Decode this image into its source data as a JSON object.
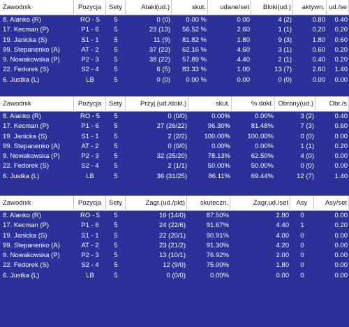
{
  "attack": {
    "headers": [
      "Zawodnik",
      "Pozycja",
      "Sety",
      "Ataki(ud.)",
      "skut.",
      "udane/set",
      "Bloki(ud.)",
      "aktywn.",
      "ud./se"
    ],
    "rows": [
      [
        "8. Alanko (R)",
        "RO - 5",
        "5",
        "0 (0)",
        "0.00 %",
        "0.00",
        "4 (2)",
        "0.80",
        "0.40"
      ],
      [
        "17. Kecman (P)",
        "P1 - 6",
        "5",
        "23 (13)",
        "56.52 %",
        "2.60",
        "1 (1)",
        "0.20",
        "0.20"
      ],
      [
        "19. Janicka (S)",
        "S1 - 1",
        "5",
        "11 (9)",
        "81.82 %",
        "1.80",
        "9 (3)",
        "1.80",
        "0.60"
      ],
      [
        "99. Stepanenko (A)",
        "AT - 2",
        "5",
        "37 (23)",
        "62.16 %",
        "4.60",
        "3 (1)",
        "0.60",
        "0.20"
      ],
      [
        "9. Nowakowska (P)",
        "P2 - 3",
        "5",
        "38 (22)",
        "57.89 %",
        "4.40",
        "2 (1)",
        "0.40",
        "0.20"
      ],
      [
        "22. Fedorek (S)",
        "S2 - 4",
        "5",
        "6 (5)",
        "83.33 %",
        "1.00",
        "13 (7)",
        "2.60",
        "1.40"
      ],
      [
        "6. Justka (L)",
        "LB",
        "5",
        "0 (0)",
        "0.00 %",
        "0.00",
        "0 (0)",
        "0.00",
        "0.00"
      ]
    ]
  },
  "reception": {
    "headers": [
      "Zawodnik",
      "Pozycja",
      "Sety",
      "Przyj.(ud./dokł.)",
      "skut.",
      "% dokł.",
      "Obrony(ud.)",
      "Obr./s"
    ],
    "rows": [
      [
        "8. Alanko (R)",
        "RO - 5",
        "5",
        "0 (0/0)",
        "0.00%",
        "0.00%",
        "3 (2)",
        "0.40"
      ],
      [
        "17. Kecman (P)",
        "P1 - 6",
        "5",
        "27 (26/22)",
        "96.30%",
        "81.48%",
        "7 (3)",
        "0.60"
      ],
      [
        "19. Janicka (S)",
        "S1 - 1",
        "5",
        "2 (2/2)",
        "100.00%",
        "100.00%",
        "0 (0)",
        "0.00"
      ],
      [
        "99. Stepanenko (A)",
        "AT - 2",
        "5",
        "0 (0/0)",
        "0.00%",
        "0.00%",
        "1 (1)",
        "0.20"
      ],
      [
        "9. Nowakowska (P)",
        "P2 - 3",
        "5",
        "32 (25/20)",
        "78.13%",
        "62.50%",
        "4 (0)",
        "0.00"
      ],
      [
        "22. Fedorek (S)",
        "S2 - 4",
        "5",
        "2 (1/1)",
        "50.00%",
        "50.00%",
        "0 (0)",
        "0.00"
      ],
      [
        "6. Justka (L)",
        "LB",
        "5",
        "36 (31/25)",
        "86.11%",
        "69.44%",
        "12 (7)",
        "1.40"
      ]
    ]
  },
  "serve": {
    "headers": [
      "Zawodnik",
      "Pozycja",
      "Sety",
      "Zagr.(ud./pkt)",
      "skuteczn.",
      "Zagr.ud./set",
      "Asy",
      "Asy/set"
    ],
    "rows": [
      [
        "8. Alanko (R)",
        "RO - 5",
        "5",
        "16 (14/0)",
        "87.50%",
        "2.80",
        "0",
        "0.00"
      ],
      [
        "17. Kecman (P)",
        "P1 - 6",
        "5",
        "24 (22/6)",
        "91.67%",
        "4.40",
        "1",
        "0.20"
      ],
      [
        "19. Janicka (S)",
        "S1 - 1",
        "5",
        "22 (20/1)",
        "90.91%",
        "4.00",
        "0",
        "0.00"
      ],
      [
        "99. Stepanenko (A)",
        "AT - 2",
        "5",
        "23 (21/2)",
        "91.30%",
        "4.20",
        "0",
        "0.00"
      ],
      [
        "9. Nowakowska (P)",
        "P2 - 3",
        "5",
        "13 (10/1)",
        "76.92%",
        "2.00",
        "0",
        "0.00"
      ],
      [
        "22. Fedorek (S)",
        "S2 - 4",
        "5",
        "12 (9/0)",
        "75.00%",
        "1.80",
        "0",
        "0.00"
      ],
      [
        "6. Justka (L)",
        "LB",
        "5",
        "0 (0/0)",
        "0.00%",
        "0.00",
        "0",
        "0.00"
      ]
    ]
  },
  "colors": {
    "background": "#2b3198",
    "header_bg": "#ffffff",
    "header_text": "#1a1a1a",
    "row_text": "#ffffff"
  }
}
